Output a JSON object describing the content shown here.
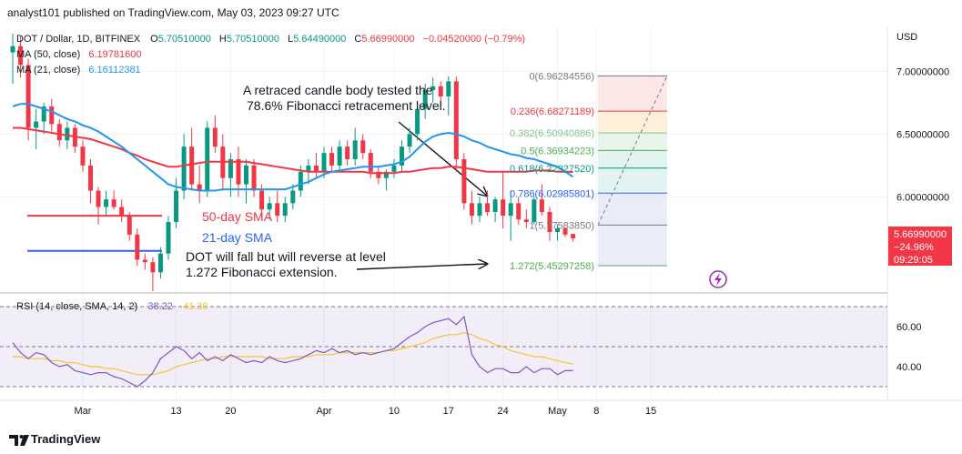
{
  "header": {
    "published": "analyst101 published on TradingView.com, May 03, 2023 09:27 UTC"
  },
  "legend": {
    "symbol": "DOT / Dollar, 1D, BITFINEX",
    "o_label": "O",
    "o_value": "5.70510000",
    "h_label": "H",
    "h_value": "5.70510000",
    "l_label": "L",
    "l_value": "5.64490000",
    "c_label": "C",
    "c_value": "5.66990000",
    "change": "−0.04520000 (−0.79%)",
    "ma50_label": "MA (50, close)",
    "ma50_value": "6.19781600",
    "ma21_label": "MA (21, close)",
    "ma21_value": "6.16112381"
  },
  "currency": "USD",
  "price_axis": [
    "7.00000000",
    "6.50000000",
    "6.00000000"
  ],
  "price_tag": {
    "price": "5.66990000",
    "change": "−24.96%",
    "countdown": "09:29:05"
  },
  "rsi": {
    "label": "RSI (14, close, SMA, 14, 2)",
    "rsi_value": "38.22",
    "sma_value": "41.30",
    "axis": [
      "60.00",
      "40.00"
    ]
  },
  "time_axis": [
    "Mar",
    "13",
    "20",
    "Apr",
    "10",
    "17",
    "24",
    "May",
    "8",
    "15"
  ],
  "annotations": {
    "retrace_line1": "A retraced candle body tested the",
    "retrace_line2": "78.6% Fibonacci retracement level.",
    "fall_line1": "DOT  will fall but will reverse at level",
    "fall_line2": "1.272 Fibonacci extension.",
    "sma50": "50-day SMA",
    "sma21": "21-day SMA"
  },
  "fib_levels": [
    {
      "label": "0(6.96284556)",
      "price": 6.96284556,
      "color": "#787b86"
    },
    {
      "label": "0.236(6.68271189)",
      "price": 6.68271189,
      "color": "#f23645"
    },
    {
      "label": "0.382(6.50940886)",
      "price": 6.50940886,
      "color": "#81c784"
    },
    {
      "label": "0.5(6.36934223)",
      "price": 6.36934223,
      "color": "#4caf50"
    },
    {
      "label": "0.618(6.22927520)",
      "price": 6.2292752,
      "color": "#089981"
    },
    {
      "label": "0.786(6.02985801)",
      "price": 6.02985801,
      "color": "#2962ff"
    },
    {
      "label": "1(5.77583850)",
      "price": 5.7758385,
      "color": "#787b86"
    },
    {
      "label": "1.272(5.45297258)",
      "price": 5.45297258,
      "color": "#4caf50"
    }
  ],
  "chart_data": {
    "type": "candlestick",
    "title": "DOT / Dollar, 1D, BITFINEX",
    "ylabel": "USD",
    "ylim": [
      5.25,
      7.35
    ],
    "x": [
      "Feb 20",
      "Feb 21",
      "Feb 22",
      "Feb 23",
      "Feb 24",
      "Feb 25",
      "Feb 26",
      "Feb 27",
      "Feb 28",
      "Mar 1",
      "Mar 2",
      "Mar 3",
      "Mar 4",
      "Mar 5",
      "Mar 6",
      "Mar 7",
      "Mar 8",
      "Mar 9",
      "Mar 10",
      "Mar 11",
      "Mar 12",
      "Mar 13",
      "Mar 14",
      "Mar 15",
      "Mar 16",
      "Mar 17",
      "Mar 18",
      "Mar 19",
      "Mar 20",
      "Mar 21",
      "Mar 22",
      "Mar 23",
      "Mar 24",
      "Mar 25",
      "Mar 26",
      "Mar 27",
      "Mar 28",
      "Mar 29",
      "Mar 30",
      "Mar 31",
      "Apr 1",
      "Apr 2",
      "Apr 3",
      "Apr 4",
      "Apr 5",
      "Apr 6",
      "Apr 7",
      "Apr 8",
      "Apr 9",
      "Apr 10",
      "Apr 11",
      "Apr 12",
      "Apr 13",
      "Apr 14",
      "Apr 15",
      "Apr 16",
      "Apr 17",
      "Apr 18",
      "Apr 19",
      "Apr 20",
      "Apr 21",
      "Apr 22",
      "Apr 23",
      "Apr 24",
      "Apr 25",
      "Apr 26",
      "Apr 27",
      "Apr 28",
      "Apr 29",
      "Apr 30",
      "May 1",
      "May 2",
      "May 3"
    ],
    "ohlc": [
      [
        7.15,
        7.3,
        6.9,
        7.2
      ],
      [
        7.2,
        7.28,
        6.95,
        7.05
      ],
      [
        7.05,
        7.1,
        6.45,
        6.55
      ],
      [
        6.55,
        6.7,
        6.38,
        6.6
      ],
      [
        6.6,
        6.75,
        6.5,
        6.72
      ],
      [
        6.72,
        6.78,
        6.52,
        6.58
      ],
      [
        6.58,
        6.62,
        6.4,
        6.45
      ],
      [
        6.45,
        6.6,
        6.38,
        6.55
      ],
      [
        6.55,
        6.58,
        6.35,
        6.4
      ],
      [
        6.4,
        6.45,
        6.2,
        6.25
      ],
      [
        6.25,
        6.3,
        5.95,
        6.05
      ],
      [
        6.05,
        6.08,
        5.78,
        5.92
      ],
      [
        5.92,
        6.05,
        5.85,
        5.98
      ],
      [
        5.98,
        6.05,
        5.9,
        5.92
      ],
      [
        5.92,
        5.98,
        5.8,
        5.85
      ],
      [
        5.85,
        5.88,
        5.65,
        5.7
      ],
      [
        5.7,
        5.75,
        5.45,
        5.5
      ],
      [
        5.5,
        5.55,
        5.42,
        5.48
      ],
      [
        5.48,
        5.52,
        5.25,
        5.4
      ],
      [
        5.4,
        5.6,
        5.35,
        5.55
      ],
      [
        5.55,
        5.85,
        5.5,
        5.8
      ],
      [
        5.8,
        6.15,
        5.75,
        6.05
      ],
      [
        6.05,
        6.5,
        5.98,
        6.4
      ],
      [
        6.4,
        6.55,
        6.05,
        6.1
      ],
      [
        6.1,
        6.25,
        5.95,
        6.05
      ],
      [
        6.05,
        6.6,
        6.0,
        6.55
      ],
      [
        6.55,
        6.65,
        6.35,
        6.4
      ],
      [
        6.4,
        6.5,
        6.05,
        6.15
      ],
      [
        6.15,
        6.35,
        6.0,
        6.3
      ],
      [
        6.3,
        6.4,
        6.0,
        6.1
      ],
      [
        6.1,
        6.3,
        5.95,
        6.25
      ],
      [
        6.25,
        6.3,
        6.0,
        6.05
      ],
      [
        6.05,
        6.1,
        5.82,
        5.9
      ],
      [
        5.9,
        6.0,
        5.82,
        5.95
      ],
      [
        5.95,
        6.05,
        5.8,
        5.85
      ],
      [
        5.85,
        6.0,
        5.8,
        5.95
      ],
      [
        5.95,
        6.1,
        5.9,
        6.05
      ],
      [
        6.05,
        6.25,
        6.0,
        6.2
      ],
      [
        6.2,
        6.3,
        6.1,
        6.25
      ],
      [
        6.25,
        6.35,
        6.15,
        6.2
      ],
      [
        6.2,
        6.4,
        6.15,
        6.35
      ],
      [
        6.35,
        6.4,
        6.2,
        6.25
      ],
      [
        6.25,
        6.45,
        6.2,
        6.4
      ],
      [
        6.4,
        6.45,
        6.25,
        6.3
      ],
      [
        6.3,
        6.55,
        6.25,
        6.45
      ],
      [
        6.45,
        6.5,
        6.3,
        6.35
      ],
      [
        6.35,
        6.38,
        6.15,
        6.2
      ],
      [
        6.2,
        6.25,
        6.1,
        6.15
      ],
      [
        6.15,
        6.22,
        6.05,
        6.2
      ],
      [
        6.2,
        6.3,
        6.15,
        6.25
      ],
      [
        6.25,
        6.45,
        6.2,
        6.4
      ],
      [
        6.4,
        6.55,
        6.35,
        6.5
      ],
      [
        6.5,
        6.75,
        6.45,
        6.7
      ],
      [
        6.7,
        6.9,
        6.62,
        6.85
      ],
      [
        6.85,
        6.95,
        6.75,
        6.88
      ],
      [
        6.88,
        6.92,
        6.72,
        6.8
      ],
      [
        6.8,
        6.96,
        6.65,
        6.92
      ],
      [
        6.92,
        6.96,
        6.2,
        6.3
      ],
      [
        6.3,
        6.35,
        5.9,
        5.95
      ],
      [
        5.95,
        6.05,
        5.78,
        5.85
      ],
      [
        5.85,
        6.0,
        5.8,
        5.95
      ],
      [
        5.95,
        6.05,
        5.85,
        5.88
      ],
      [
        5.88,
        6.0,
        5.8,
        5.98
      ],
      [
        5.98,
        6.2,
        5.75,
        5.85
      ],
      [
        5.85,
        6.05,
        5.65,
        5.95
      ],
      [
        5.95,
        6.0,
        5.78,
        5.82
      ],
      [
        5.82,
        5.9,
        5.75,
        5.8
      ],
      [
        5.8,
        6.0,
        5.78,
        5.98
      ],
      [
        5.98,
        6.1,
        5.85,
        5.88
      ],
      [
        5.88,
        5.92,
        5.65,
        5.72
      ],
      [
        5.72,
        5.78,
        5.65,
        5.75
      ],
      [
        5.75,
        5.76,
        5.68,
        5.7
      ],
      [
        5.705,
        5.705,
        5.645,
        5.67
      ]
    ],
    "series": [
      {
        "name": "MA (50, close)",
        "color": "#f23645",
        "values": [
          6.55,
          6.55,
          6.54,
          6.53,
          6.52,
          6.51,
          6.5,
          6.49,
          6.48,
          6.47,
          6.46,
          6.44,
          6.42,
          6.4,
          6.38,
          6.35,
          6.33,
          6.3,
          6.28,
          6.26,
          6.24,
          6.24,
          6.25,
          6.26,
          6.27,
          6.28,
          6.28,
          6.28,
          6.28,
          6.28,
          6.28,
          6.27,
          6.26,
          6.25,
          6.24,
          6.23,
          6.22,
          6.21,
          6.2,
          6.2,
          6.2,
          6.2,
          6.2,
          6.2,
          6.2,
          6.2,
          6.19,
          6.19,
          6.19,
          6.19,
          6.2,
          6.2,
          6.21,
          6.22,
          6.23,
          6.23,
          6.24,
          6.24,
          6.23,
          6.22,
          6.21,
          6.2,
          6.2,
          6.2,
          6.2,
          6.2,
          6.2,
          6.21,
          6.21,
          6.21,
          6.2,
          6.2,
          6.198
        ]
      },
      {
        "name": "MA (21, close)",
        "color": "#2196f3",
        "values": [
          6.72,
          6.74,
          6.74,
          6.72,
          6.7,
          6.68,
          6.65,
          6.62,
          6.6,
          6.57,
          6.55,
          6.52,
          6.48,
          6.44,
          6.4,
          6.35,
          6.3,
          6.25,
          6.2,
          6.15,
          6.1,
          6.08,
          6.07,
          6.06,
          6.05,
          6.05,
          6.05,
          6.06,
          6.06,
          6.06,
          6.06,
          6.06,
          6.06,
          6.06,
          6.06,
          6.06,
          6.08,
          6.1,
          6.12,
          6.15,
          6.18,
          6.2,
          6.21,
          6.22,
          6.23,
          6.24,
          6.24,
          6.24,
          6.25,
          6.26,
          6.28,
          6.32,
          6.38,
          6.44,
          6.48,
          6.5,
          6.51,
          6.5,
          6.48,
          6.45,
          6.43,
          6.4,
          6.38,
          6.36,
          6.34,
          6.33,
          6.31,
          6.3,
          6.28,
          6.26,
          6.24,
          6.2,
          6.16
        ]
      }
    ],
    "rsi": {
      "ylim": [
        25,
        75
      ],
      "bands": [
        30,
        50,
        70
      ],
      "rsi": [
        52,
        47,
        44,
        47,
        46,
        42,
        40,
        41,
        38,
        37,
        36,
        37,
        37,
        35,
        34,
        32,
        30,
        33,
        37,
        44,
        47,
        50,
        48,
        44,
        47,
        43,
        45,
        43,
        46,
        44,
        42,
        43,
        42,
        45,
        43,
        42,
        43,
        44,
        46,
        48,
        47,
        49,
        47,
        48,
        46,
        47,
        46,
        47,
        48,
        49,
        52,
        55,
        57,
        60,
        62,
        63,
        64,
        61,
        65,
        46,
        40,
        37,
        39,
        39,
        37,
        37,
        40,
        37,
        39,
        39,
        36,
        38,
        38
      ],
      "sma": [
        45,
        45,
        44,
        44,
        44,
        43,
        43,
        42,
        42,
        41,
        40,
        40,
        39,
        39,
        38,
        37,
        36,
        36,
        36,
        37,
        38,
        40,
        41,
        42,
        43,
        44,
        44,
        45,
        45,
        45,
        45,
        45,
        45,
        44,
        44,
        44,
        45,
        45,
        45,
        46,
        46,
        46,
        47,
        47,
        47,
        47,
        47,
        47,
        48,
        48,
        49,
        50,
        51,
        52,
        54,
        55,
        56,
        56,
        57,
        56,
        54,
        53,
        51,
        50,
        48,
        47,
        46,
        45,
        45,
        44,
        43,
        42,
        41.3
      ]
    }
  }
}
